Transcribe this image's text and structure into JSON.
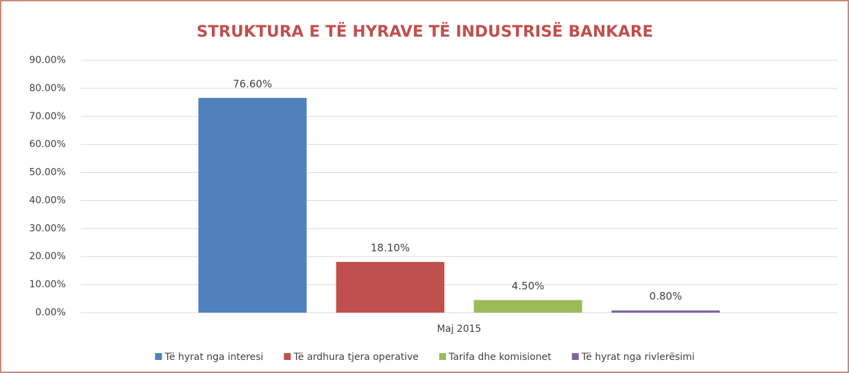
{
  "chart_data": {
    "type": "bar",
    "title": "STRUKTURA E TË HYRAVE TË INDUSTRISË BANKARE",
    "categories": [
      "Maj 2015"
    ],
    "series": [
      {
        "name": "Të hyrat nga interesi",
        "color": "#4f81bd",
        "values": [
          76.6
        ],
        "value_labels": [
          "76.60%"
        ]
      },
      {
        "name": "Të ardhura tjera operative",
        "color": "#c0504d",
        "values": [
          18.1
        ],
        "value_labels": [
          "18.10%"
        ]
      },
      {
        "name": "Tarifa dhe komisionet",
        "color": "#9bbb59",
        "values": [
          4.5
        ],
        "value_labels": [
          "4.50%"
        ]
      },
      {
        "name": "Të hyrat nga rivlerësimi",
        "color": "#8064a2",
        "values": [
          0.8
        ],
        "value_labels": [
          "0.80%"
        ]
      }
    ],
    "ylim": [
      0,
      90
    ],
    "yticks": [
      {
        "value": 0,
        "label": "0.00%"
      },
      {
        "value": 10,
        "label": "10.00%"
      },
      {
        "value": 20,
        "label": "20.00%"
      },
      {
        "value": 30,
        "label": "30.00%"
      },
      {
        "value": 40,
        "label": "40.00%"
      },
      {
        "value": 50,
        "label": "50.00%"
      },
      {
        "value": 60,
        "label": "60.00%"
      },
      {
        "value": 70,
        "label": "70.00%"
      },
      {
        "value": 80,
        "label": "80.00%"
      },
      {
        "value": 90,
        "label": "90.00%"
      }
    ],
    "grid": true,
    "legend": "bottom"
  }
}
